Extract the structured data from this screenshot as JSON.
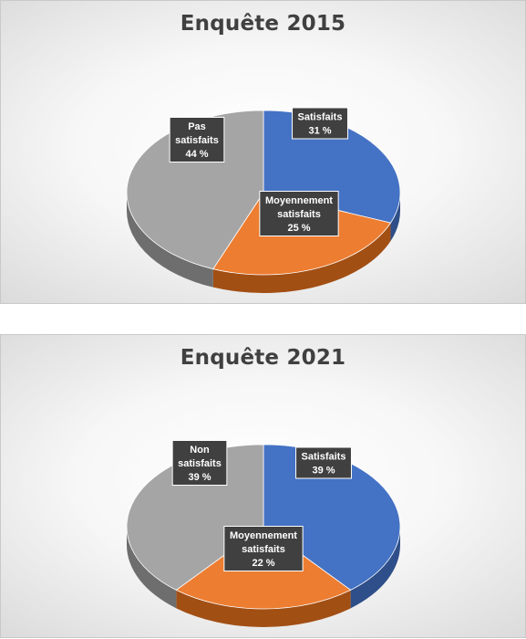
{
  "chart_data": [
    {
      "type": "pie",
      "title": "Enquête 2015",
      "slices": [
        {
          "label": "Satisfaits",
          "value": 31,
          "display": "31 %",
          "color": "#4472C4",
          "side": "#2E4F89"
        },
        {
          "label": "Moyennement satisfaits",
          "value": 25,
          "display": "25 %",
          "color": "#ED7D31",
          "side": "#A24F14"
        },
        {
          "label": "Pas satisfaits",
          "value": 44,
          "display": "44 %",
          "color": "#A5A5A5",
          "side": "#6E6E6E"
        }
      ]
    },
    {
      "type": "pie",
      "title": "Enquête 2021",
      "slices": [
        {
          "label": "Satisfaits",
          "value": 39,
          "display": "39 %",
          "color": "#4472C4",
          "side": "#2E4F89"
        },
        {
          "label": "Moyennement satisfaits",
          "value": 22,
          "display": "22 %",
          "color": "#ED7D31",
          "side": "#A24F14"
        },
        {
          "label": "Non satisfaits",
          "value": 39,
          "display": "39 %",
          "color": "#A5A5A5",
          "side": "#6E6E6E"
        }
      ]
    }
  ]
}
